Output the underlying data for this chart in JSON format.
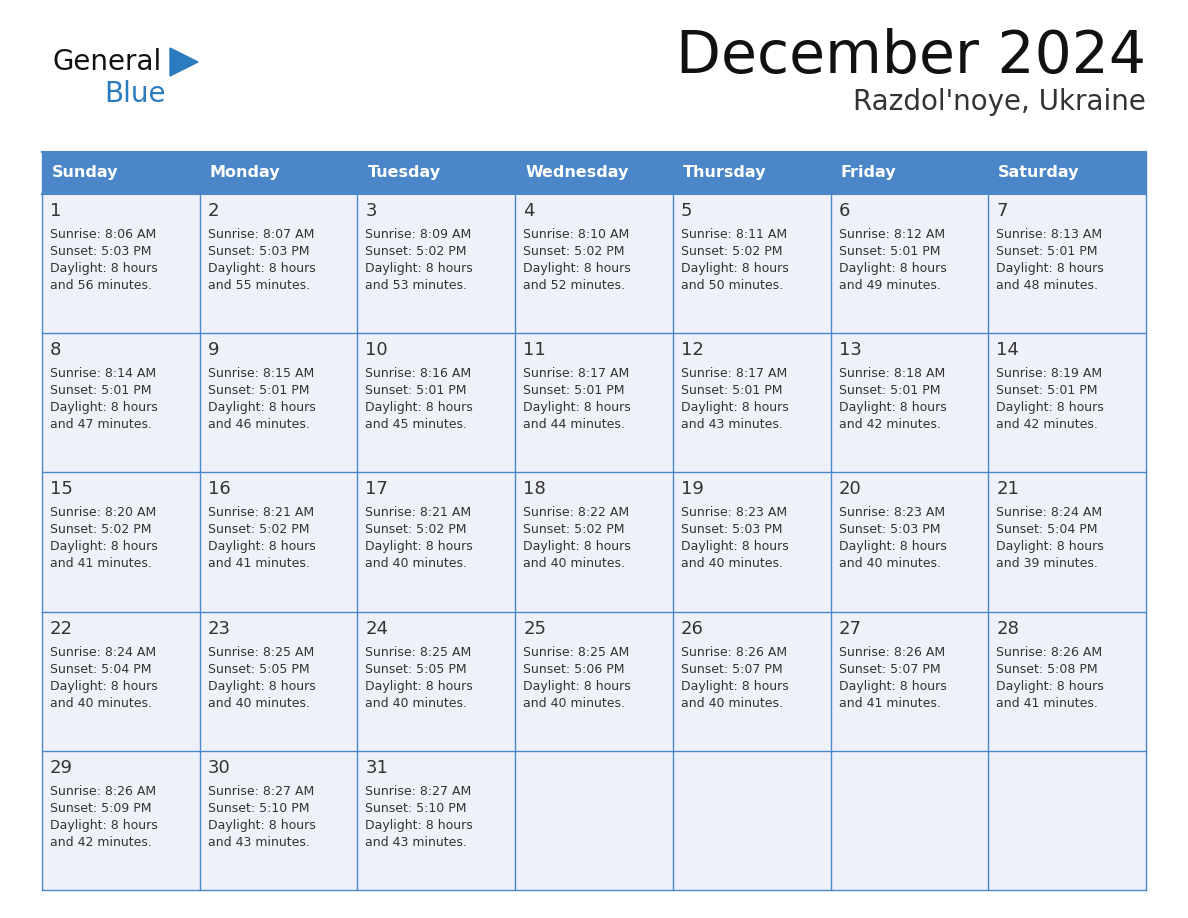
{
  "title": "December 2024",
  "subtitle": "Razdol'noye, Ukraine",
  "header_color": "#4a86c8",
  "header_text_color": "#ffffff",
  "day_names": [
    "Sunday",
    "Monday",
    "Tuesday",
    "Wednesday",
    "Thursday",
    "Friday",
    "Saturday"
  ],
  "cell_bg_color": "#eef2f8",
  "cell_text_color": "#333333",
  "day_num_color": "#333333",
  "grid_color": "#4a86c8",
  "logo_general_color": "#111111",
  "logo_blue_color": "#2b7bbf",
  "title_color": "#111111",
  "subtitle_color": "#333333",
  "calendar_data": [
    [
      {
        "day": "1",
        "sunrise": "8:06 AM",
        "sunset": "5:03 PM",
        "daylight_line1": "Daylight: 8 hours",
        "daylight_line2": "and 56 minutes."
      },
      {
        "day": "2",
        "sunrise": "8:07 AM",
        "sunset": "5:03 PM",
        "daylight_line1": "Daylight: 8 hours",
        "daylight_line2": "and 55 minutes."
      },
      {
        "day": "3",
        "sunrise": "8:09 AM",
        "sunset": "5:02 PM",
        "daylight_line1": "Daylight: 8 hours",
        "daylight_line2": "and 53 minutes."
      },
      {
        "day": "4",
        "sunrise": "8:10 AM",
        "sunset": "5:02 PM",
        "daylight_line1": "Daylight: 8 hours",
        "daylight_line2": "and 52 minutes."
      },
      {
        "day": "5",
        "sunrise": "8:11 AM",
        "sunset": "5:02 PM",
        "daylight_line1": "Daylight: 8 hours",
        "daylight_line2": "and 50 minutes."
      },
      {
        "day": "6",
        "sunrise": "8:12 AM",
        "sunset": "5:01 PM",
        "daylight_line1": "Daylight: 8 hours",
        "daylight_line2": "and 49 minutes."
      },
      {
        "day": "7",
        "sunrise": "8:13 AM",
        "sunset": "5:01 PM",
        "daylight_line1": "Daylight: 8 hours",
        "daylight_line2": "and 48 minutes."
      }
    ],
    [
      {
        "day": "8",
        "sunrise": "8:14 AM",
        "sunset": "5:01 PM",
        "daylight_line1": "Daylight: 8 hours",
        "daylight_line2": "and 47 minutes."
      },
      {
        "day": "9",
        "sunrise": "8:15 AM",
        "sunset": "5:01 PM",
        "daylight_line1": "Daylight: 8 hours",
        "daylight_line2": "and 46 minutes."
      },
      {
        "day": "10",
        "sunrise": "8:16 AM",
        "sunset": "5:01 PM",
        "daylight_line1": "Daylight: 8 hours",
        "daylight_line2": "and 45 minutes."
      },
      {
        "day": "11",
        "sunrise": "8:17 AM",
        "sunset": "5:01 PM",
        "daylight_line1": "Daylight: 8 hours",
        "daylight_line2": "and 44 minutes."
      },
      {
        "day": "12",
        "sunrise": "8:17 AM",
        "sunset": "5:01 PM",
        "daylight_line1": "Daylight: 8 hours",
        "daylight_line2": "and 43 minutes."
      },
      {
        "day": "13",
        "sunrise": "8:18 AM",
        "sunset": "5:01 PM",
        "daylight_line1": "Daylight: 8 hours",
        "daylight_line2": "and 42 minutes."
      },
      {
        "day": "14",
        "sunrise": "8:19 AM",
        "sunset": "5:01 PM",
        "daylight_line1": "Daylight: 8 hours",
        "daylight_line2": "and 42 minutes."
      }
    ],
    [
      {
        "day": "15",
        "sunrise": "8:20 AM",
        "sunset": "5:02 PM",
        "daylight_line1": "Daylight: 8 hours",
        "daylight_line2": "and 41 minutes."
      },
      {
        "day": "16",
        "sunrise": "8:21 AM",
        "sunset": "5:02 PM",
        "daylight_line1": "Daylight: 8 hours",
        "daylight_line2": "and 41 minutes."
      },
      {
        "day": "17",
        "sunrise": "8:21 AM",
        "sunset": "5:02 PM",
        "daylight_line1": "Daylight: 8 hours",
        "daylight_line2": "and 40 minutes."
      },
      {
        "day": "18",
        "sunrise": "8:22 AM",
        "sunset": "5:02 PM",
        "daylight_line1": "Daylight: 8 hours",
        "daylight_line2": "and 40 minutes."
      },
      {
        "day": "19",
        "sunrise": "8:23 AM",
        "sunset": "5:03 PM",
        "daylight_line1": "Daylight: 8 hours",
        "daylight_line2": "and 40 minutes."
      },
      {
        "day": "20",
        "sunrise": "8:23 AM",
        "sunset": "5:03 PM",
        "daylight_line1": "Daylight: 8 hours",
        "daylight_line2": "and 40 minutes."
      },
      {
        "day": "21",
        "sunrise": "8:24 AM",
        "sunset": "5:04 PM",
        "daylight_line1": "Daylight: 8 hours",
        "daylight_line2": "and 39 minutes."
      }
    ],
    [
      {
        "day": "22",
        "sunrise": "8:24 AM",
        "sunset": "5:04 PM",
        "daylight_line1": "Daylight: 8 hours",
        "daylight_line2": "and 40 minutes."
      },
      {
        "day": "23",
        "sunrise": "8:25 AM",
        "sunset": "5:05 PM",
        "daylight_line1": "Daylight: 8 hours",
        "daylight_line2": "and 40 minutes."
      },
      {
        "day": "24",
        "sunrise": "8:25 AM",
        "sunset": "5:05 PM",
        "daylight_line1": "Daylight: 8 hours",
        "daylight_line2": "and 40 minutes."
      },
      {
        "day": "25",
        "sunrise": "8:25 AM",
        "sunset": "5:06 PM",
        "daylight_line1": "Daylight: 8 hours",
        "daylight_line2": "and 40 minutes."
      },
      {
        "day": "26",
        "sunrise": "8:26 AM",
        "sunset": "5:07 PM",
        "daylight_line1": "Daylight: 8 hours",
        "daylight_line2": "and 40 minutes."
      },
      {
        "day": "27",
        "sunrise": "8:26 AM",
        "sunset": "5:07 PM",
        "daylight_line1": "Daylight: 8 hours",
        "daylight_line2": "and 41 minutes."
      },
      {
        "day": "28",
        "sunrise": "8:26 AM",
        "sunset": "5:08 PM",
        "daylight_line1": "Daylight: 8 hours",
        "daylight_line2": "and 41 minutes."
      }
    ],
    [
      {
        "day": "29",
        "sunrise": "8:26 AM",
        "sunset": "5:09 PM",
        "daylight_line1": "Daylight: 8 hours",
        "daylight_line2": "and 42 minutes."
      },
      {
        "day": "30",
        "sunrise": "8:27 AM",
        "sunset": "5:10 PM",
        "daylight_line1": "Daylight: 8 hours",
        "daylight_line2": "and 43 minutes."
      },
      {
        "day": "31",
        "sunrise": "8:27 AM",
        "sunset": "5:10 PM",
        "daylight_line1": "Daylight: 8 hours",
        "daylight_line2": "and 43 minutes."
      },
      null,
      null,
      null,
      null
    ]
  ]
}
